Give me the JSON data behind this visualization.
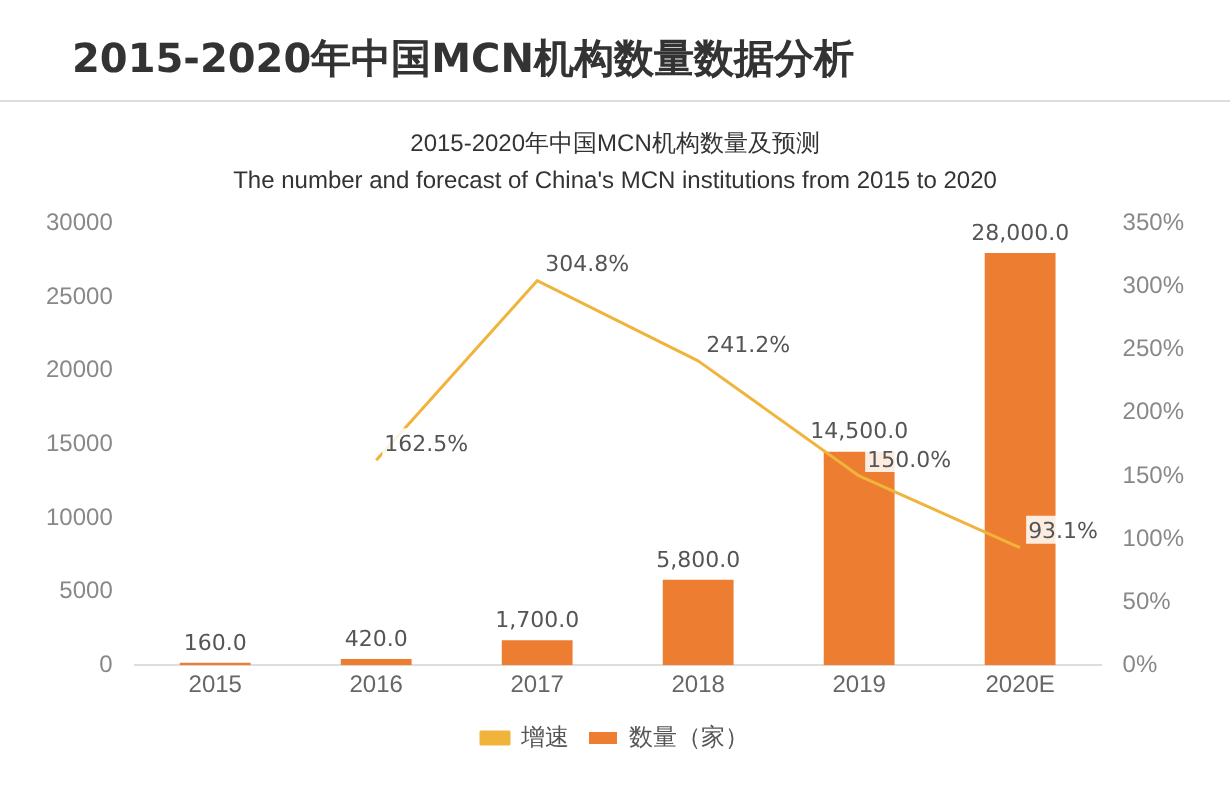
{
  "chart_data": {
    "type": "bar",
    "title": "2015-2020年中国MCN机构数量数据分析",
    "subtitle": "2015-2020年中国MCN机构数量及预测",
    "annotations": [
      "The number and forecast of China's MCN institutions from 2015 to 2020"
    ],
    "categories": [
      "2015",
      "2016",
      "2017",
      "2018",
      "2019",
      "2020E"
    ],
    "series": [
      {
        "name": "数量（家）",
        "color": "#ed7d31",
        "values": [
          160,
          420,
          1700,
          5800,
          14500,
          28000
        ],
        "value_labels": [
          "160.0",
          "420.0",
          "1,700.0",
          "5,800.0",
          "14,500.0",
          "28,000.0"
        ]
      },
      {
        "name": "增速",
        "type": "line",
        "axis": "y2",
        "color": "#f0b43c",
        "values": [
          null,
          162.5,
          304.8,
          241.2,
          150.0,
          93.1
        ],
        "value_labels": [
          null,
          "162.5%",
          "304.8%",
          "241.2%",
          "150.0%",
          "93.1%"
        ]
      }
    ],
    "ylim": [
      0,
      30000
    ],
    "yticks": [
      0,
      5000,
      10000,
      15000,
      20000,
      25000,
      30000
    ],
    "y2lim": [
      0,
      350
    ],
    "y2ticks": [
      {
        "value": 0,
        "label": "0%"
      },
      {
        "value": 50,
        "label": "50%"
      },
      {
        "value": 100,
        "label": "100%"
      },
      {
        "value": 150,
        "label": "150%"
      },
      {
        "value": 200,
        "label": "200%"
      },
      {
        "value": 250,
        "label": "250%"
      },
      {
        "value": 300,
        "label": "300%"
      },
      {
        "value": 350,
        "label": "350%"
      }
    ],
    "grid": false,
    "legend": "bottom",
    "marker": "none",
    "line_style": "solid"
  }
}
